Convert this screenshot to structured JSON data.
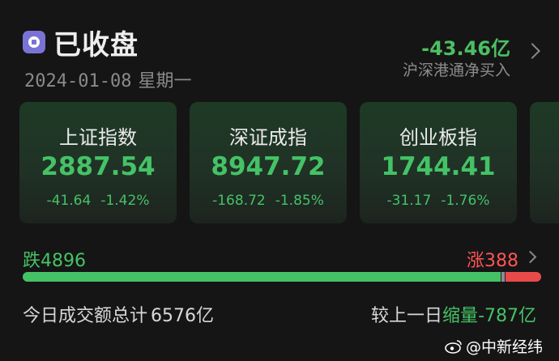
{
  "header": {
    "status": "已收盘",
    "date": "2024-01-08",
    "weekday": "星期一",
    "netflow_value": "-43.46亿",
    "netflow_label": "沪深港通净买入"
  },
  "indices": [
    {
      "name": "上证指数",
      "value": "2887.54",
      "change": "-41.64",
      "change_pct": "-1.42%"
    },
    {
      "name": "深证成指",
      "value": "8947.72",
      "change": "-168.72",
      "change_pct": "-1.85%"
    },
    {
      "name": "创业板指",
      "value": "1744.41",
      "change": "-31.17",
      "change_pct": "-1.76%"
    }
  ],
  "breadth": {
    "fall_label": "跌",
    "fall_count": "4896",
    "rise_label": "涨",
    "rise_count": "388",
    "fall_fraction": 0.927,
    "flat_fraction": 0.0,
    "rise_fraction": 0.073
  },
  "turnover": {
    "prefix": "今日成交额总计",
    "amount": "6576亿"
  },
  "compare": {
    "prefix": "较上一日",
    "direction": "缩量",
    "diff": "-787亿"
  },
  "watermark": {
    "text": "@中新经纬"
  },
  "colors": {
    "green": "#45c266",
    "red": "#ff5555",
    "accent": "#7a73d6",
    "background": "#151515"
  }
}
